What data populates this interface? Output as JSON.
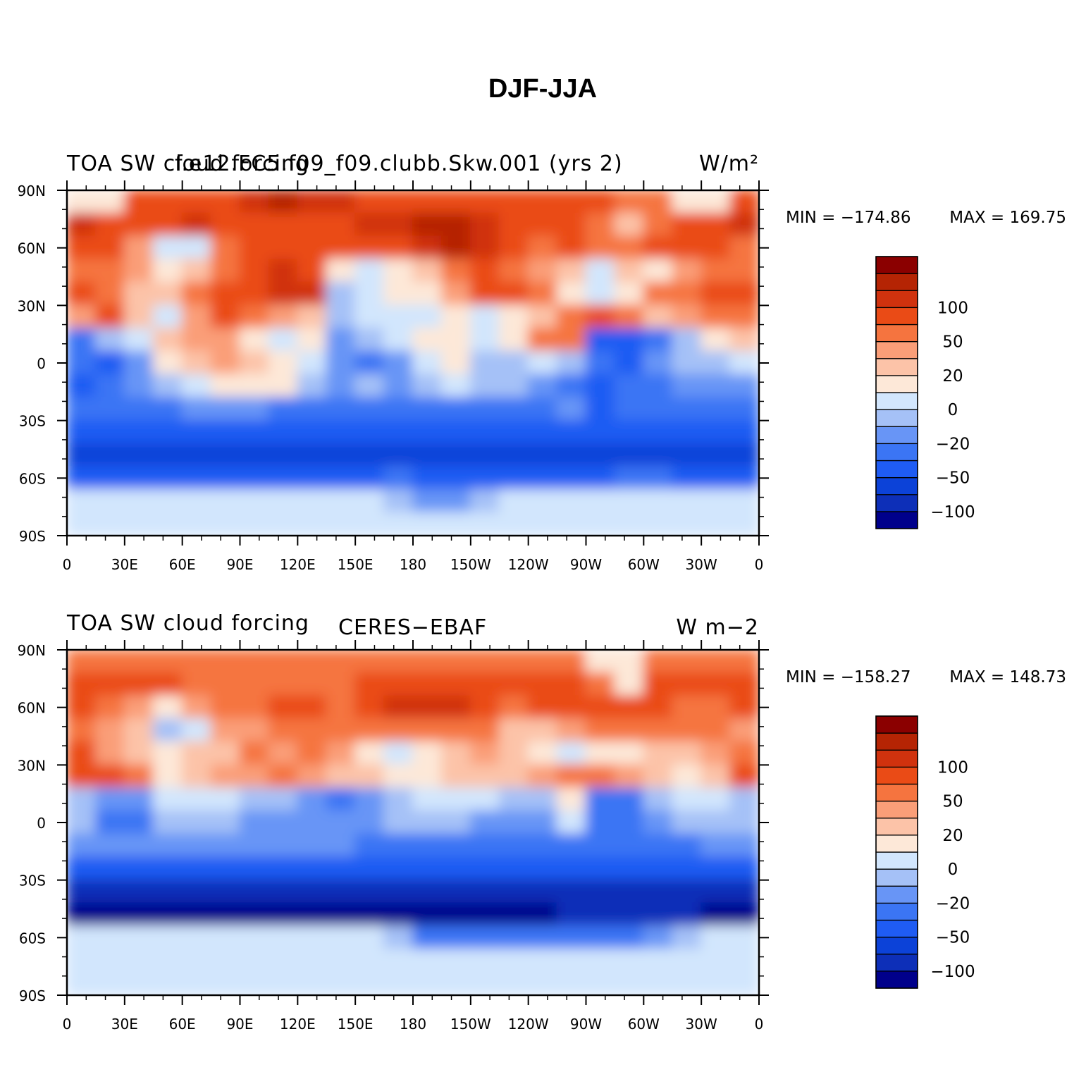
{
  "title": "DJF-JJA",
  "chart_data": [
    {
      "type": "heatmap",
      "panel": "top",
      "left_title": "TOA SW cloud forcing",
      "center_title": "f.e12.FC5.f09_f09.clubb.Skw.001 (yrs 2)",
      "units": "W/m²",
      "min_label": "MIN = −174.86",
      "max_label": "MAX = 169.75",
      "min": -174.86,
      "max": 169.75,
      "x_ticks": [
        "0",
        "30E",
        "60E",
        "90E",
        "120E",
        "150E",
        "180",
        "150W",
        "120W",
        "90W",
        "60W",
        "30W",
        "0"
      ],
      "y_ticks": [
        "90N",
        "60N",
        "30N",
        "0",
        "30S",
        "60S",
        "90S"
      ],
      "xlim": [
        0,
        360
      ],
      "ylim": [
        -90,
        90
      ],
      "colorbar": {
        "labels": [
          "100",
          "50",
          "20",
          "0",
          "−20",
          "−50",
          "−100"
        ],
        "levels": [
          -125,
          -100,
          -75,
          -50,
          -35,
          -20,
          -10,
          0,
          10,
          20,
          35,
          50,
          75,
          100,
          125
        ],
        "colors": [
          "#00008b",
          "#0d2fb8",
          "#0c42d8",
          "#1f5cf3",
          "#3b75f4",
          "#6895f6",
          "#a5c1f7",
          "#d2e6fd",
          "#fde8d8",
          "#fcc3a8",
          "#fa9e78",
          "#f5743f",
          "#ea4b16",
          "#d0320e",
          "#b52404",
          "#8b0000"
        ]
      },
      "field": [
        [
          8,
          8,
          12,
          12,
          12,
          12,
          13,
          14,
          13,
          13,
          12,
          12,
          12,
          12,
          12,
          12,
          12,
          12,
          12,
          11,
          11,
          8,
          8,
          12
        ],
        [
          13,
          12,
          12,
          12,
          13,
          12,
          12,
          12,
          12,
          12,
          13,
          13,
          14,
          14,
          13,
          12,
          12,
          12,
          11,
          9,
          11,
          12,
          12,
          13
        ],
        [
          12,
          12,
          10,
          7,
          7,
          11,
          12,
          12,
          12,
          12,
          12,
          12,
          13,
          14,
          13,
          12,
          11,
          12,
          11,
          11,
          12,
          12,
          12,
          11
        ],
        [
          11,
          11,
          10,
          8,
          9,
          11,
          12,
          13,
          12,
          8,
          7,
          8,
          9,
          11,
          12,
          11,
          10,
          9,
          7,
          9,
          8,
          10,
          11,
          11
        ],
        [
          12,
          11,
          9,
          9,
          11,
          12,
          12,
          13,
          13,
          6,
          7,
          8,
          8,
          10,
          12,
          12,
          11,
          8,
          7,
          8,
          11,
          11,
          12,
          12
        ],
        [
          10,
          12,
          9,
          7,
          10,
          12,
          11,
          10,
          9,
          6,
          7,
          7,
          7,
          8,
          7,
          8,
          9,
          11,
          12,
          11,
          9,
          10,
          11,
          11
        ],
        [
          4,
          6,
          7,
          9,
          10,
          10,
          8,
          7,
          8,
          5,
          6,
          7,
          8,
          8,
          7,
          8,
          11,
          11,
          3,
          3,
          4,
          6,
          8,
          9
        ],
        [
          4,
          3,
          5,
          8,
          9,
          10,
          9,
          8,
          7,
          5,
          4,
          5,
          7,
          8,
          6,
          6,
          7,
          6,
          4,
          3,
          5,
          6,
          6,
          7
        ],
        [
          3,
          4,
          5,
          6,
          7,
          8,
          8,
          8,
          6,
          5,
          6,
          5,
          6,
          7,
          6,
          6,
          5,
          4,
          3,
          4,
          4,
          5,
          5,
          5
        ],
        [
          4,
          4,
          4,
          4,
          5,
          5,
          5,
          4,
          4,
          4,
          4,
          4,
          4,
          4,
          4,
          4,
          4,
          5,
          3,
          4,
          4,
          4,
          4,
          4
        ],
        [
          3,
          3,
          3,
          3,
          3,
          3,
          3,
          3,
          3,
          3,
          3,
          3,
          3,
          3,
          3,
          3,
          3,
          3,
          3,
          3,
          3,
          3,
          3,
          3
        ],
        [
          2,
          2,
          2,
          2,
          2,
          2,
          2,
          2,
          2,
          2,
          2,
          2,
          2,
          2,
          2,
          2,
          2,
          2,
          2,
          2,
          2,
          2,
          2,
          2
        ],
        [
          3,
          3,
          3,
          3,
          3,
          3,
          3,
          3,
          3,
          3,
          3,
          4,
          3,
          3,
          3,
          3,
          3,
          3,
          3,
          4,
          4,
          3,
          3,
          3
        ],
        [
          7,
          7,
          7,
          7,
          7,
          7,
          7,
          7,
          7,
          7,
          7,
          6,
          5,
          5,
          6,
          7,
          7,
          7,
          7,
          7,
          7,
          7,
          7,
          7
        ],
        [
          7,
          7,
          7,
          7,
          7,
          7,
          7,
          7,
          7,
          7,
          7,
          7,
          7,
          7,
          7,
          7,
          7,
          7,
          7,
          7,
          7,
          7,
          7,
          7
        ]
      ]
    },
    {
      "type": "heatmap",
      "panel": "bottom",
      "left_title": "TOA SW cloud forcing",
      "center_title": "CERES−EBAF",
      "units": "W m−2",
      "min_label": "MIN = −158.27",
      "max_label": "MAX = 148.73",
      "min": -158.27,
      "max": 148.73,
      "x_ticks": [
        "0",
        "30E",
        "60E",
        "90E",
        "120E",
        "150E",
        "180",
        "150W",
        "120W",
        "90W",
        "60W",
        "30W",
        "0"
      ],
      "y_ticks": [
        "90N",
        "60N",
        "30N",
        "0",
        "30S",
        "60S",
        "90S"
      ],
      "xlim": [
        0,
        360
      ],
      "ylim": [
        -90,
        90
      ],
      "colorbar": {
        "labels": [
          "100",
          "50",
          "20",
          "0",
          "−20",
          "−50",
          "−100"
        ],
        "levels": [
          -125,
          -100,
          -75,
          -50,
          -35,
          -20,
          -10,
          0,
          10,
          20,
          35,
          50,
          75,
          100,
          125
        ],
        "colors": [
          "#00008b",
          "#0d2fb8",
          "#0c42d8",
          "#1f5cf3",
          "#3b75f4",
          "#6895f6",
          "#a5c1f7",
          "#d2e6fd",
          "#fde8d8",
          "#fcc3a8",
          "#fa9e78",
          "#f5743f",
          "#ea4b16",
          "#d0320e",
          "#b52404",
          "#8b0000"
        ]
      },
      "field": [
        [
          11,
          11,
          11,
          11,
          11,
          11,
          11,
          11,
          11,
          11,
          11,
          11,
          11,
          11,
          11,
          11,
          11,
          11,
          8,
          8,
          11,
          11,
          11,
          11
        ],
        [
          12,
          12,
          12,
          12,
          11,
          11,
          11,
          11,
          11,
          11,
          12,
          12,
          12,
          12,
          12,
          12,
          12,
          12,
          11,
          8,
          12,
          12,
          12,
          12
        ],
        [
          12,
          11,
          10,
          8,
          10,
          11,
          11,
          12,
          12,
          11,
          12,
          13,
          13,
          13,
          12,
          11,
          12,
          12,
          12,
          12,
          12,
          11,
          11,
          12
        ],
        [
          11,
          10,
          9,
          6,
          7,
          10,
          10,
          11,
          11,
          11,
          11,
          11,
          11,
          11,
          11,
          9,
          9,
          10,
          11,
          11,
          11,
          11,
          11,
          10
        ],
        [
          12,
          10,
          9,
          8,
          9,
          9,
          11,
          10,
          11,
          10,
          8,
          7,
          8,
          9,
          10,
          9,
          8,
          7,
          8,
          8,
          9,
          9,
          10,
          11
        ],
        [
          12,
          12,
          11,
          8,
          9,
          10,
          10,
          11,
          10,
          9,
          9,
          8,
          8,
          9,
          9,
          9,
          10,
          11,
          11,
          10,
          9,
          8,
          9,
          12
        ],
        [
          6,
          5,
          5,
          7,
          7,
          7,
          6,
          6,
          5,
          4,
          5,
          6,
          7,
          7,
          7,
          6,
          6,
          8,
          4,
          4,
          6,
          7,
          7,
          6
        ],
        [
          6,
          4,
          4,
          6,
          6,
          6,
          5,
          5,
          5,
          5,
          5,
          6,
          6,
          6,
          5,
          5,
          5,
          7,
          4,
          4,
          5,
          6,
          6,
          6
        ],
        [
          5,
          5,
          5,
          5,
          5,
          5,
          5,
          5,
          5,
          5,
          4,
          4,
          4,
          4,
          4,
          4,
          4,
          4,
          4,
          4,
          4,
          4,
          5,
          5
        ],
        [
          3,
          3,
          3,
          3,
          3,
          3,
          3,
          3,
          3,
          3,
          3,
          3,
          3,
          3,
          3,
          3,
          3,
          3,
          3,
          3,
          3,
          3,
          3,
          3
        ],
        [
          1,
          1,
          1,
          1,
          1,
          1,
          1,
          1,
          1,
          1,
          1,
          1,
          1,
          1,
          1,
          1,
          1,
          1,
          1,
          1,
          1,
          1,
          1,
          1
        ],
        [
          0,
          0,
          0,
          0,
          0,
          0,
          0,
          0,
          0,
          0,
          0,
          0,
          0,
          0,
          0,
          0,
          0,
          1,
          1,
          1,
          1,
          1,
          0,
          0
        ],
        [
          7,
          7,
          7,
          7,
          7,
          7,
          7,
          7,
          7,
          7,
          7,
          6,
          4,
          4,
          4,
          4,
          4,
          4,
          4,
          4,
          5,
          6,
          7,
          7
        ],
        [
          7,
          7,
          7,
          7,
          7,
          7,
          7,
          7,
          7,
          7,
          7,
          7,
          7,
          7,
          7,
          7,
          7,
          7,
          7,
          7,
          7,
          7,
          7,
          7
        ],
        [
          7,
          7,
          7,
          7,
          7,
          7,
          7,
          7,
          7,
          7,
          7,
          7,
          7,
          7,
          7,
          7,
          7,
          7,
          7,
          7,
          7,
          7,
          7,
          7
        ]
      ]
    }
  ]
}
